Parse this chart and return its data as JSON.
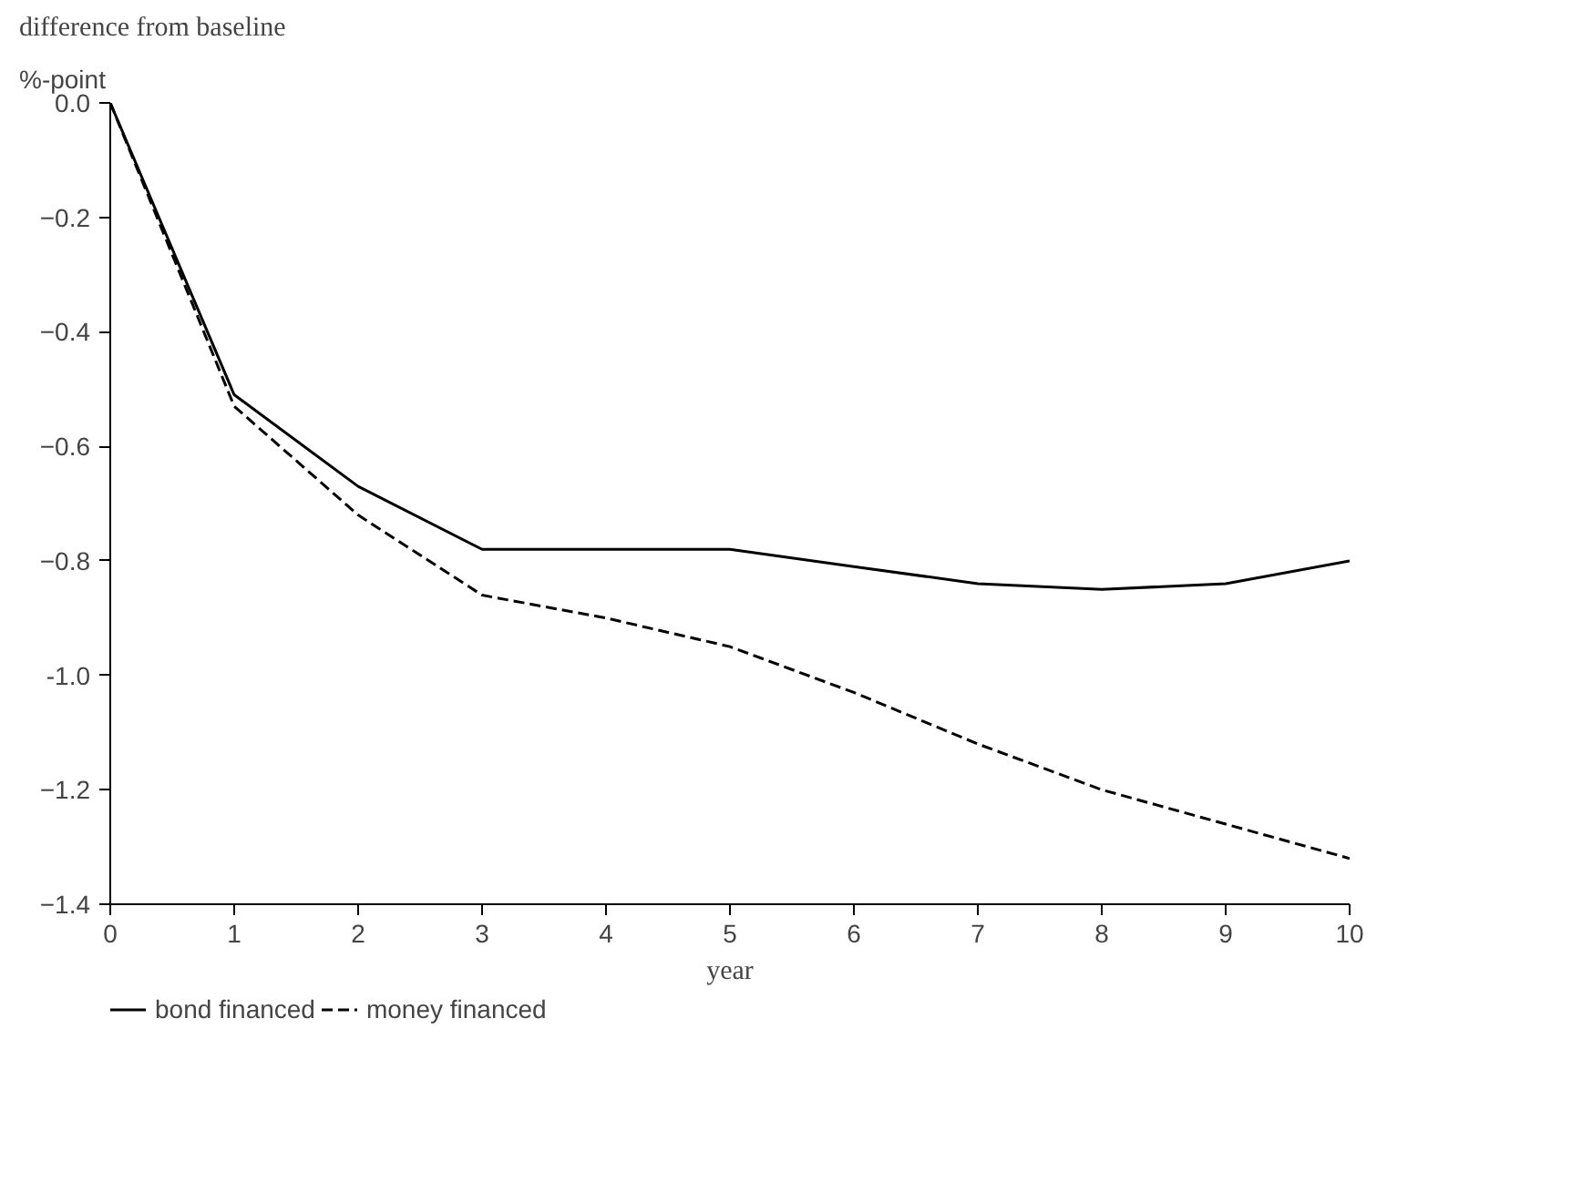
{
  "chart_data": {
    "type": "line",
    "title": "difference from baseline",
    "ylabel": "%-point",
    "xlabel": "year",
    "x": [
      0,
      1,
      2,
      3,
      4,
      5,
      6,
      7,
      8,
      9,
      10
    ],
    "series": [
      {
        "name": "bond financed",
        "color": "#000000",
        "line_style": "solid",
        "values": [
          0,
          -0.51,
          -0.67,
          -0.78,
          -0.78,
          -0.78,
          -0.81,
          -0.84,
          -0.85,
          -0.84,
          -0.8
        ]
      },
      {
        "name": "money financed",
        "color": "#000000",
        "line_style": "dashed",
        "values": [
          0,
          -0.53,
          -0.72,
          -0.86,
          -0.9,
          -0.95,
          -1.03,
          -1.12,
          -1.2,
          -1.26,
          -1.32
        ]
      }
    ],
    "xlim": [
      0,
      10
    ],
    "ylim": [
      -1.4,
      0
    ],
    "xticks": [
      0,
      1,
      2,
      3,
      4,
      5,
      6,
      7,
      8,
      9,
      10
    ],
    "yticks": [
      {
        "value": 0,
        "label": "0.0"
      },
      -0.2,
      -0.4,
      -0.6,
      -0.8,
      {
        "value": -1,
        "label": "-1.0"
      },
      -1.2,
      -1.4
    ],
    "grid": false,
    "legend": "bottom",
    "marker": "none"
  }
}
